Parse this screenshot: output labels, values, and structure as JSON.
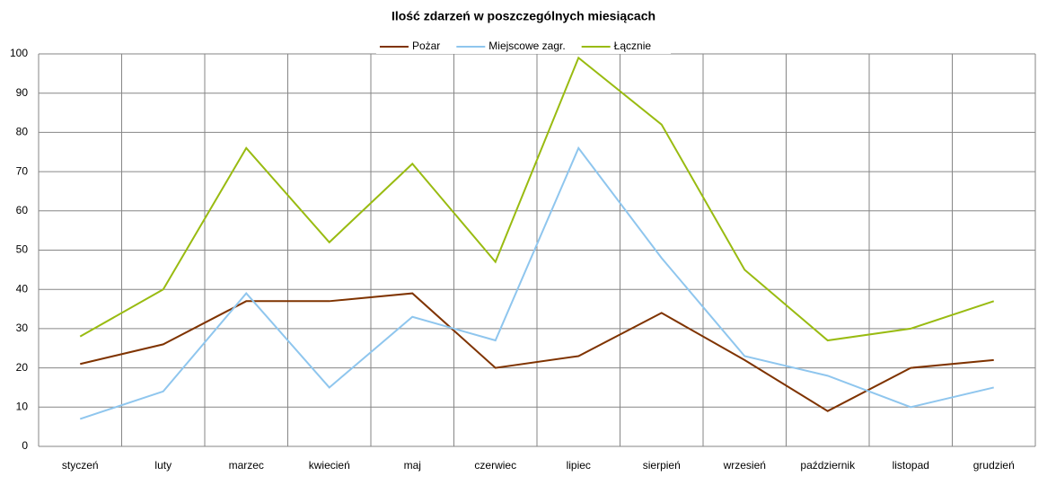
{
  "chart_data": {
    "type": "line",
    "title": "Ilość zdarzeń w poszczególnych miesiącach",
    "categories": [
      "styczeń",
      "luty",
      "marzec",
      "kwiecień",
      "maj",
      "czerwiec",
      "lipiec",
      "sierpień",
      "wrzesień",
      "październik",
      "listopad",
      "grudzień"
    ],
    "series": [
      {
        "name": "Pożar",
        "color": "#7f3300",
        "values": [
          21,
          26,
          37,
          37,
          39,
          20,
          23,
          34,
          22,
          9,
          20,
          22
        ]
      },
      {
        "name": "Miejscowe zagr.",
        "color": "#8fc6ee",
        "values": [
          7,
          14,
          39,
          15,
          33,
          27,
          76,
          48,
          23,
          18,
          10,
          15
        ]
      },
      {
        "name": "Łącznie",
        "color": "#99bb11",
        "values": [
          28,
          40,
          76,
          52,
          72,
          47,
          99,
          82,
          45,
          27,
          30,
          37
        ]
      }
    ],
    "ylim": [
      0,
      100
    ],
    "yticks": [
      0,
      10,
      20,
      30,
      40,
      50,
      60,
      70,
      80,
      90,
      100
    ],
    "grid": true,
    "legend": "top"
  }
}
